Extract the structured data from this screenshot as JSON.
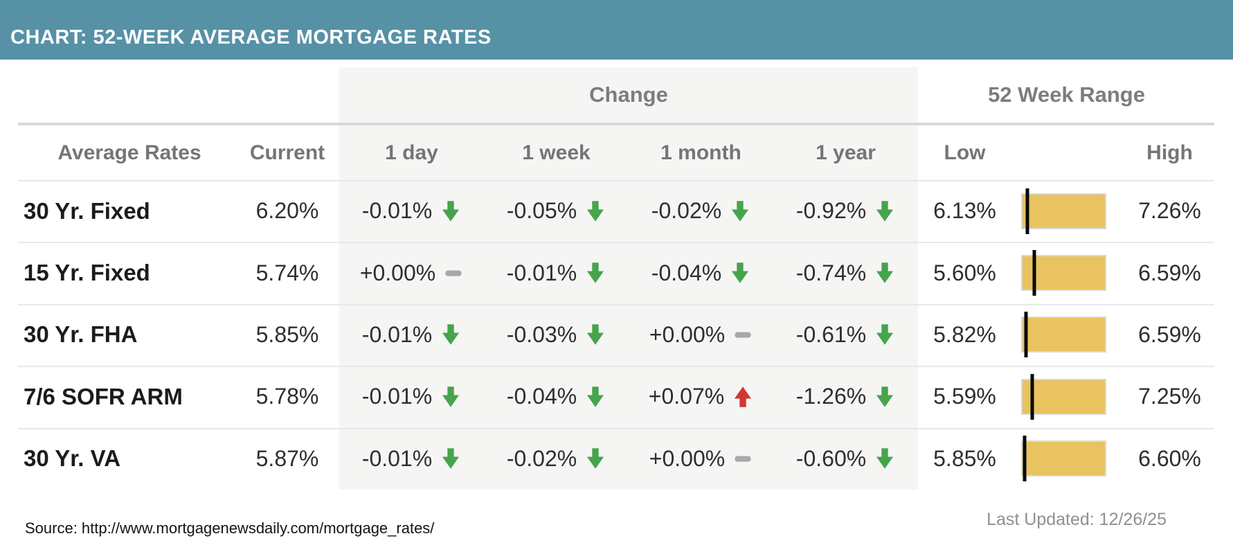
{
  "title": "CHART: 52-WEEK AVERAGE MORTGAGE RATES",
  "colors": {
    "header_bg": "#5791a6",
    "band_bg": "#f5f5f4",
    "down": "#46a44c",
    "up": "#d03730",
    "flat": "#a8a8a8",
    "bar_fill": "#e9c35f",
    "bar_border": "#d9d9d9",
    "marker": "#0a0a0a"
  },
  "table": {
    "group_headers": {
      "change": "Change",
      "range": "52 Week Range"
    },
    "columns": {
      "rates": "Average Rates",
      "current": "Current",
      "day": "1 day",
      "week": "1 week",
      "month": "1 month",
      "year": "1 year",
      "low": "Low",
      "high": "High"
    },
    "rows": [
      {
        "label": "30 Yr. Fixed",
        "current": "6.20%",
        "changes": [
          {
            "value": "-0.01%",
            "dir": "down"
          },
          {
            "value": "-0.05%",
            "dir": "down"
          },
          {
            "value": "-0.02%",
            "dir": "down"
          },
          {
            "value": "-0.92%",
            "dir": "down"
          }
        ],
        "low": "6.13%",
        "high": "7.26%"
      },
      {
        "label": "15 Yr. Fixed",
        "current": "5.74%",
        "changes": [
          {
            "value": "+0.00%",
            "dir": "flat"
          },
          {
            "value": "-0.01%",
            "dir": "down"
          },
          {
            "value": "-0.04%",
            "dir": "down"
          },
          {
            "value": "-0.74%",
            "dir": "down"
          }
        ],
        "low": "5.60%",
        "high": "6.59%"
      },
      {
        "label": "30 Yr. FHA",
        "current": "5.85%",
        "changes": [
          {
            "value": "-0.01%",
            "dir": "down"
          },
          {
            "value": "-0.03%",
            "dir": "down"
          },
          {
            "value": "+0.00%",
            "dir": "flat"
          },
          {
            "value": "-0.61%",
            "dir": "down"
          }
        ],
        "low": "5.82%",
        "high": "6.59%"
      },
      {
        "label": "7/6 SOFR ARM",
        "current": "5.78%",
        "changes": [
          {
            "value": "-0.01%",
            "dir": "down"
          },
          {
            "value": "-0.04%",
            "dir": "down"
          },
          {
            "value": "+0.07%",
            "dir": "up"
          },
          {
            "value": "-1.26%",
            "dir": "down"
          }
        ],
        "low": "5.59%",
        "high": "7.25%"
      },
      {
        "label": "30 Yr. VA",
        "current": "5.87%",
        "changes": [
          {
            "value": "-0.01%",
            "dir": "down"
          },
          {
            "value": "-0.02%",
            "dir": "down"
          },
          {
            "value": "+0.00%",
            "dir": "flat"
          },
          {
            "value": "-0.60%",
            "dir": "down"
          }
        ],
        "low": "5.85%",
        "high": "6.60%"
      }
    ]
  },
  "footer": {
    "source": "Source: http://www.mortgagenewsdaily.com/mortgage_rates/",
    "last_updated": "Last Updated: 12/26/25"
  },
  "chart_data": {
    "type": "table",
    "title": "CHART: 52-WEEK AVERAGE MORTGAGE RATES",
    "columns": [
      "Average Rates",
      "Current",
      "1 day",
      "1 week",
      "1 month",
      "1 year",
      "Low",
      "High"
    ],
    "rows": [
      [
        "30 Yr. Fixed",
        "6.20%",
        "-0.01%",
        "-0.05%",
        "-0.02%",
        "-0.92%",
        "6.13%",
        "7.26%"
      ],
      [
        "15 Yr. Fixed",
        "5.74%",
        "+0.00%",
        "-0.01%",
        "-0.04%",
        "-0.74%",
        "5.60%",
        "6.59%"
      ],
      [
        "30 Yr. FHA",
        "5.85%",
        "-0.01%",
        "-0.03%",
        "+0.00%",
        "-0.61%",
        "5.82%",
        "6.59%"
      ],
      [
        "7/6 SOFR ARM",
        "5.78%",
        "-0.01%",
        "-0.04%",
        "+0.07%",
        "-1.26%",
        "5.59%",
        "7.25%"
      ],
      [
        "30 Yr. VA",
        "5.87%",
        "-0.01%",
        "-0.02%",
        "+0.00%",
        "-0.60%",
        "5.85%",
        "6.60%"
      ]
    ],
    "notes": "Green down arrow = decrease, red up arrow = increase, gray dash = unchanged. Yellow bar = 52-week range with black marker at current rate position."
  }
}
